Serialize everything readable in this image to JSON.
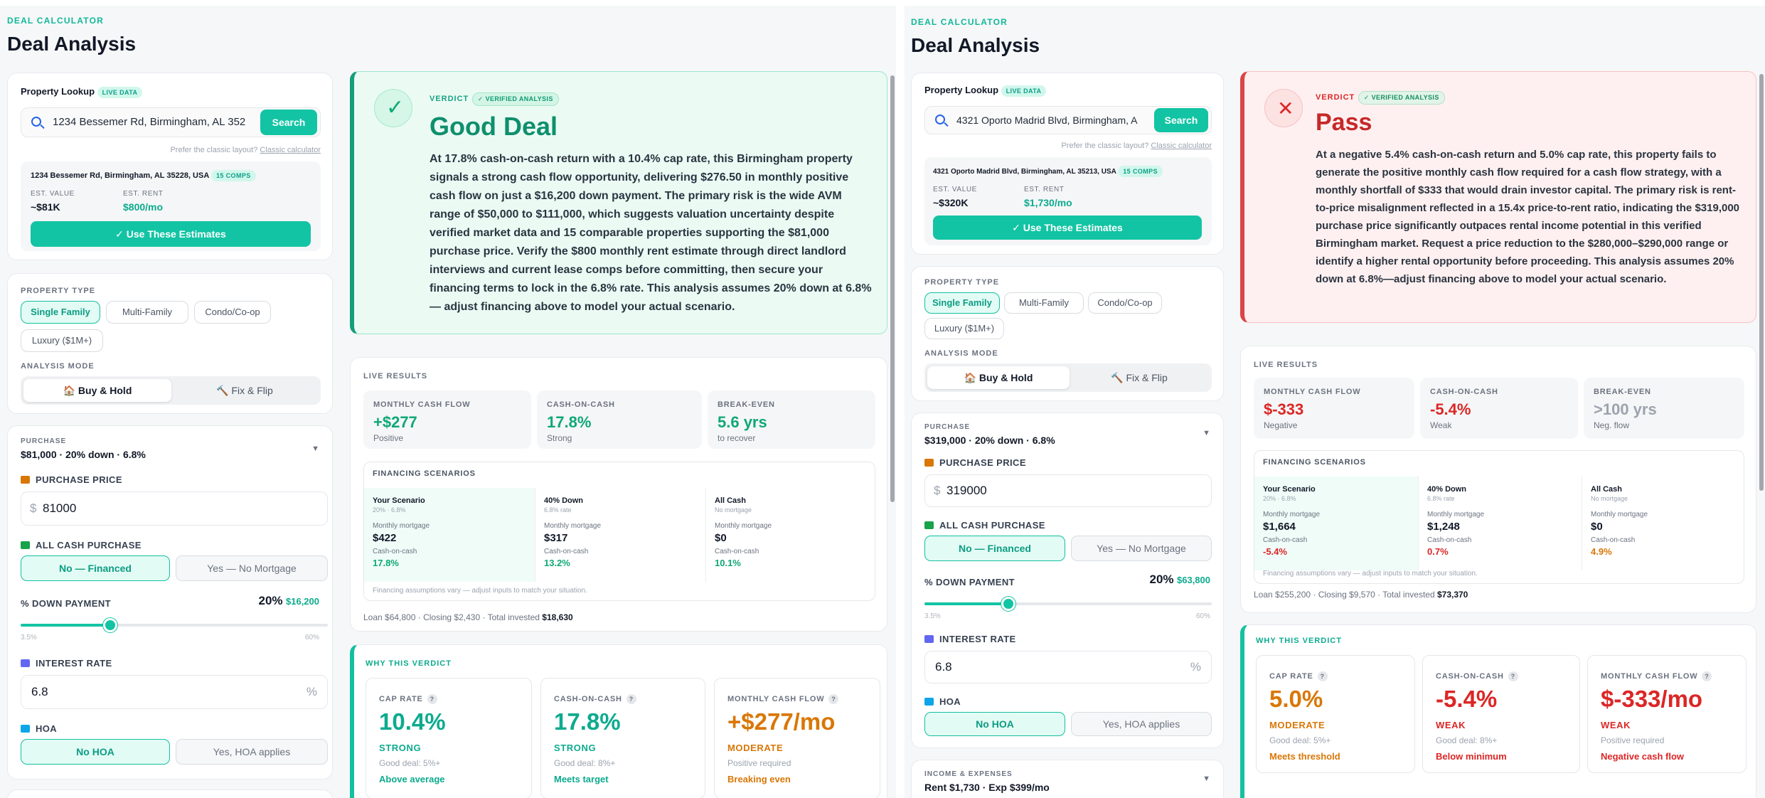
{
  "left": {
    "brand": "DEAL CALCULATOR",
    "title": "Deal Analysis",
    "lookup": {
      "title": "Property Lookup",
      "badge": "LIVE DATA",
      "address": "1234 Bessemer Rd, Birmingham, AL 352",
      "search": "Search",
      "hint_pre": "Prefer the classic layout?",
      "hint_link": "Classic calculator",
      "found_address": "1234 Bessemer Rd, Birmingham, AL 35228, USA",
      "comps": "15 COMPS",
      "est_value_label": "EST. VALUE",
      "est_value": "~$81K",
      "est_rent_label": "EST. RENT",
      "est_rent": "$800/mo",
      "use": "✓ Use These Estimates"
    },
    "ptype": {
      "label": "PROPERTY TYPE",
      "chips": [
        "Single Family",
        "Multi-Family",
        "Condo/Co-op",
        "Luxury ($1M+)"
      ],
      "mode_label": "ANALYSIS MODE",
      "mode": [
        "🏠 Buy & Hold",
        "🔨 Fix & Flip"
      ]
    },
    "purchase": {
      "label": "PURCHASE",
      "summary": "$81,000 · 20% down · 6.8%",
      "price_label": "PURCHASE PRICE",
      "currency": "$",
      "price": "81000",
      "cash_label": "ALL CASH PURCHASE",
      "cash_opts": [
        "No — Financed",
        "Yes — No Mortgage"
      ],
      "down_label": "% DOWN PAYMENT",
      "down_pct": "20%",
      "down_amt": "$16,200",
      "down_value": 20,
      "down_min": "3.5%",
      "down_max": "60%",
      "rate_label": "INTEREST RATE",
      "rate": "6.8",
      "rate_unit": "%",
      "hoa_label": "HOA",
      "hoa_opts": [
        "No HOA",
        "Yes, HOA applies"
      ]
    },
    "verdict": {
      "label": "VERDICT",
      "badge": "✓ VERIFIED ANALYSIS",
      "title": "Good Deal",
      "icon": "✓",
      "text": "At 17.8% cash-on-cash return with a 10.4% cap rate, this Birmingham property signals a strong cash flow opportunity, delivering $276.50 in monthly positive cash flow on just a $16,200 down payment. The primary risk is the wide AVM range of $50,000 to $111,000, which suggests valuation uncertainty despite verified market data and 15 comparable properties supporting the $81,000 purchase price. Verify the $800 monthly rent estimate through direct landlord interviews and current lease comps before committing, then secure your financing terms to lock in the 6.8% rate. This analysis assumes 20% down at 6.8% — adjust financing above to model your actual scenario."
    },
    "live": {
      "label": "LIVE RESULTS",
      "metrics": [
        {
          "label": "MONTHLY CASH FLOW",
          "value": "+$277",
          "sub": "Positive"
        },
        {
          "label": "CASH-ON-CASH",
          "value": "17.8%",
          "sub": "Strong"
        },
        {
          "label": "BREAK-EVEN",
          "value": "5.6 yrs",
          "sub": "to recover"
        }
      ],
      "fin": {
        "label": "FINANCING SCENARIOS",
        "cols": [
          {
            "name": "Your Scenario",
            "sub": "20% · 6.8%",
            "ml": "Monthly mortgage",
            "mv": "$422",
            "cl": "Cash-on-cash",
            "cv": "17.8%"
          },
          {
            "name": "40% Down",
            "sub": "6.8% rate",
            "ml": "Monthly mortgage",
            "mv": "$317",
            "cl": "Cash-on-cash",
            "cv": "13.2%"
          },
          {
            "name": "All Cash",
            "sub": "No mortgage",
            "ml": "Monthly mortgage",
            "mv": "$0",
            "cl": "Cash-on-cash",
            "cv": "10.1%"
          }
        ],
        "note": "Financing assumptions vary — adjust inputs to match your situation."
      },
      "foot_pre": "Loan $64,800 · Closing $2,430 · Total invested",
      "foot_total": "$18,630"
    },
    "why": {
      "label": "WHY THIS VERDICT",
      "cards": [
        {
          "label": "CAP RATE",
          "value": "10.4%",
          "status": "STRONG",
          "good": "Good deal: 5%+",
          "note": "Above average"
        },
        {
          "label": "CASH-ON-CASH",
          "value": "17.8%",
          "status": "STRONG",
          "good": "Good deal: 8%+",
          "note": "Meets target"
        },
        {
          "label": "MONTHLY CASH FLOW",
          "value": "+$277/mo",
          "status": "MODERATE",
          "good": "Positive required",
          "note": "Breaking even"
        }
      ]
    }
  },
  "right": {
    "brand": "DEAL CALCULATOR",
    "title": "Deal Analysis",
    "lookup": {
      "title": "Property Lookup",
      "badge": "LIVE DATA",
      "address": "4321 Oporto Madrid Blvd, Birmingham, A",
      "search": "Search",
      "hint_pre": "Prefer the classic layout?",
      "hint_link": "Classic calculator",
      "found_address": "4321 Oporto Madrid Blvd, Birmingham, AL 35213, USA",
      "comps": "15 COMPS",
      "est_value_label": "EST. VALUE",
      "est_value": "~$320K",
      "est_rent_label": "EST. RENT",
      "est_rent": "$1,730/mo",
      "use": "✓ Use These Estimates"
    },
    "ptype": {
      "label": "PROPERTY TYPE",
      "chips": [
        "Single Family",
        "Multi-Family",
        "Condo/Co-op",
        "Luxury ($1M+)"
      ],
      "mode_label": "ANALYSIS MODE",
      "mode": [
        "🏠 Buy & Hold",
        "🔨 Fix & Flip"
      ]
    },
    "purchase": {
      "label": "PURCHASE",
      "summary": "$319,000 · 20% down · 6.8%",
      "price_label": "PURCHASE PRICE",
      "currency": "$",
      "price": "319000",
      "cash_label": "ALL CASH PURCHASE",
      "cash_opts": [
        "No — Financed",
        "Yes — No Mortgage"
      ],
      "down_label": "% DOWN PAYMENT",
      "down_pct": "20%",
      "down_amt": "$63,800",
      "down_value": 20,
      "down_min": "3.5%",
      "down_max": "60%",
      "rate_label": "INTEREST RATE",
      "rate": "6.8",
      "rate_unit": "%",
      "hoa_label": "HOA",
      "hoa_opts": [
        "No HOA",
        "Yes, HOA applies"
      ]
    },
    "income": {
      "label": "INCOME & EXPENSES",
      "summary": "Rent $1,730 · Exp $399/mo"
    },
    "verdict": {
      "label": "VERDICT",
      "badge": "✓ VERIFIED ANALYSIS",
      "title": "Pass",
      "icon": "✕",
      "text": "At a negative 5.4% cash-on-cash return and 5.0% cap rate, this property fails to generate the positive monthly cash flow required for a cash flow strategy, with a monthly shortfall of $333 that would drain investor capital. The primary risk is rent-to-price misalignment reflected in a 15.4x price-to-rent ratio, indicating the $319,000 purchase price significantly outpaces rental income potential in this verified Birmingham market. Request a price reduction to the $280,000–$290,000 range or identify a higher rental opportunity before proceeding. This analysis assumes 20% down at 6.8%—adjust financing above to model your actual scenario."
    },
    "live": {
      "label": "LIVE RESULTS",
      "metrics": [
        {
          "label": "MONTHLY CASH FLOW",
          "value": "$-333",
          "sub": "Negative"
        },
        {
          "label": "CASH-ON-CASH",
          "value": "-5.4%",
          "sub": "Weak"
        },
        {
          "label": "BREAK-EVEN",
          "value": ">100 yrs",
          "sub": "Neg. flow"
        }
      ],
      "fin": {
        "label": "FINANCING SCENARIOS",
        "cols": [
          {
            "name": "Your Scenario",
            "sub": "20% · 6.8%",
            "ml": "Monthly mortgage",
            "mv": "$1,664",
            "cl": "Cash-on-cash",
            "cv": "-5.4%"
          },
          {
            "name": "40% Down",
            "sub": "6.8% rate",
            "ml": "Monthly mortgage",
            "mv": "$1,248",
            "cl": "Cash-on-cash",
            "cv": "0.7%"
          },
          {
            "name": "All Cash",
            "sub": "No mortgage",
            "ml": "Monthly mortgage",
            "mv": "$0",
            "cl": "Cash-on-cash",
            "cv": "4.9%"
          }
        ],
        "note": "Financing assumptions vary — adjust inputs to match your situation."
      },
      "foot_pre": "Loan $255,200 · Closing $9,570 · Total invested",
      "foot_total": "$73,370"
    },
    "why": {
      "label": "WHY THIS VERDICT",
      "cards": [
        {
          "label": "CAP RATE",
          "value": "5.0%",
          "status": "MODERATE",
          "good": "Good deal: 5%+",
          "note": "Meets threshold"
        },
        {
          "label": "CASH-ON-CASH",
          "value": "-5.4%",
          "status": "WEAK",
          "good": "Good deal: 8%+",
          "note": "Below minimum"
        },
        {
          "label": "MONTHLY CASH FLOW",
          "value": "$-333/mo",
          "status": "WEAK",
          "good": "Positive required",
          "note": "Negative cash flow"
        }
      ]
    }
  }
}
